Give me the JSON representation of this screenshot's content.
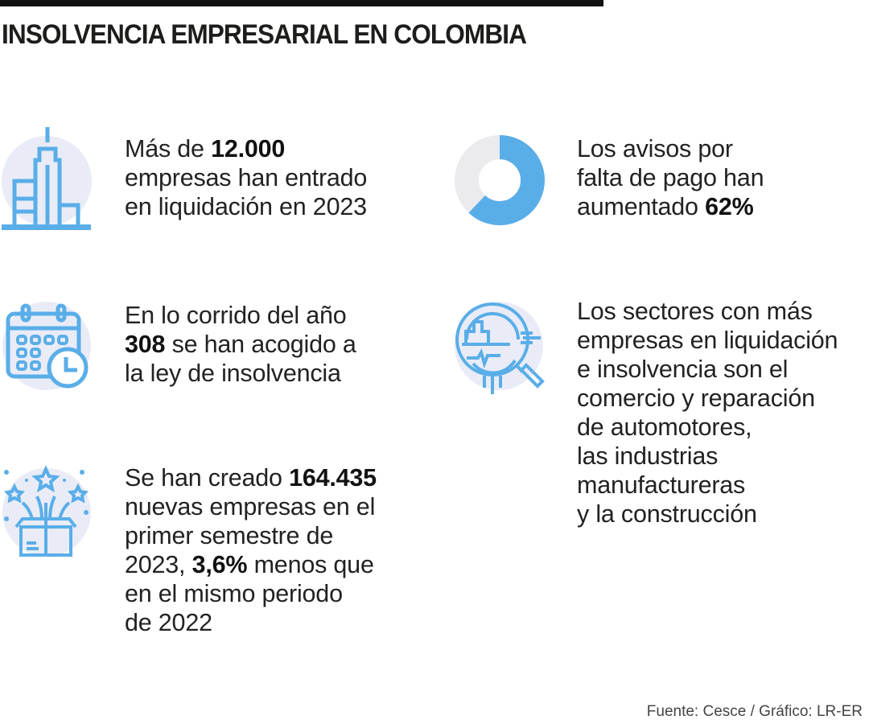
{
  "title": "INSOLVENCIA EMPRESARIAL EN COLOMBIA",
  "colors": {
    "accent": "#5aaee8",
    "icon_bg": "#e9ecf7",
    "donut_rest": "#ebebef"
  },
  "items": [
    {
      "icon": "buildings-icon",
      "lines": [
        [
          {
            "t": "Más de "
          },
          {
            "t": "12.000",
            "b": true
          }
        ],
        [
          {
            "t": "empresas han entrado"
          }
        ],
        [
          {
            "t": "en liquidación en 2023"
          }
        ]
      ]
    },
    {
      "icon": "calendar-clock-icon",
      "lines": [
        [
          {
            "t": "En lo corrido del año"
          }
        ],
        [
          {
            "t": "308",
            "b": true
          },
          {
            "t": " se han acogido a"
          }
        ],
        [
          {
            "t": "la ley de insolvencia"
          }
        ]
      ]
    },
    {
      "icon": "gift-box-fireworks-icon",
      "lines": [
        [
          {
            "t": "Se han creado "
          },
          {
            "t": "164.435",
            "b": true
          }
        ],
        [
          {
            "t": "nuevas empresas en el"
          }
        ],
        [
          {
            "t": "primer semestre de"
          }
        ],
        [
          {
            "t": "2023, "
          },
          {
            "t": "3,6%",
            "b": true
          },
          {
            "t": " menos que"
          }
        ],
        [
          {
            "t": "en el mismo periodo"
          }
        ],
        [
          {
            "t": "de 2022"
          }
        ]
      ]
    },
    {
      "icon": "donut-chart-icon",
      "donut_percent": 62,
      "lines": [
        [
          {
            "t": "Los avisos por"
          }
        ],
        [
          {
            "t": "falta de pago han"
          }
        ],
        [
          {
            "t": "aumentado "
          },
          {
            "t": "62%",
            "b": true
          }
        ]
      ]
    },
    {
      "icon": "magnifier-chart-icon",
      "lines": [
        [
          {
            "t": "Los sectores con más"
          }
        ],
        [
          {
            "t": "empresas en liquidación"
          }
        ],
        [
          {
            "t": "e insolvencia son el"
          }
        ],
        [
          {
            "t": "comercio y reparación"
          }
        ],
        [
          {
            "t": "de automotores,"
          }
        ],
        [
          {
            "t": "las industrias"
          }
        ],
        [
          {
            "t": "manufactureras"
          }
        ],
        [
          {
            "t": "y la construcción"
          }
        ]
      ]
    }
  ],
  "source": "Fuente: Cesce / Gráfico: LR-ER"
}
